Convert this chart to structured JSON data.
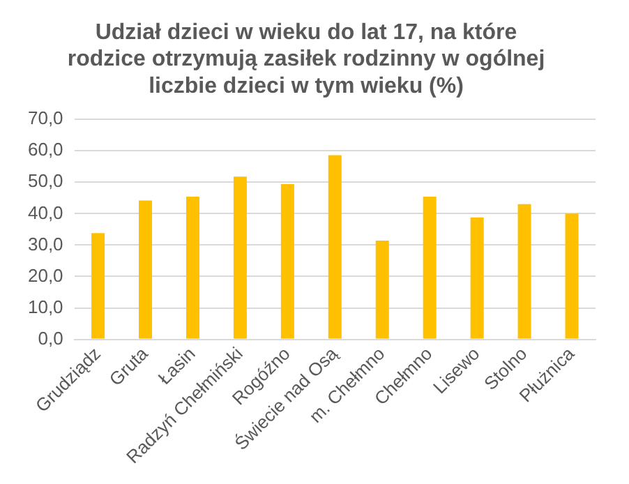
{
  "chart_data": {
    "type": "bar",
    "title": [
      "Udział dzieci w wieku do lat 17, na które",
      "rodzice otrzymują zasiłek rodzinny w ogólnej",
      "liczbie dzieci w tym wieku (%)"
    ],
    "categories": [
      "Grudziądz",
      "Gruta",
      "Łasin",
      "Radzyń Chełmiński",
      "Rogóźno",
      "Świecie nad Osą",
      "m. Chełmno",
      "Chełmno",
      "Lisewo",
      "Stolno",
      "Płużnica"
    ],
    "values": [
      33.8,
      44.2,
      45.4,
      51.8,
      49.4,
      58.6,
      31.4,
      45.4,
      38.8,
      43.0,
      40.0
    ],
    "color": "#ffc000",
    "ylim": [
      0,
      70
    ],
    "yticks": [
      {
        "value": 0,
        "label": "0,0"
      },
      {
        "value": 10,
        "label": "10,0"
      },
      {
        "value": 20,
        "label": "20,0"
      },
      {
        "value": 30,
        "label": "30,0"
      },
      {
        "value": 40,
        "label": "40,0"
      },
      {
        "value": 50,
        "label": "50,0"
      },
      {
        "value": 60,
        "label": "60,0"
      },
      {
        "value": 70,
        "label": "70,0"
      }
    ],
    "grid": "y",
    "legend": false
  }
}
